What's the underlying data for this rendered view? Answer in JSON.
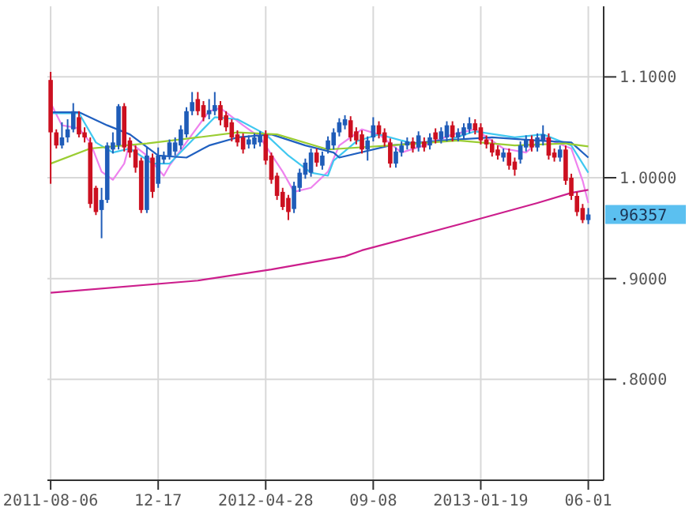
{
  "chart_data": {
    "type": "candlestick",
    "xlim": [
      "2011-08-02",
      "2013-06-20"
    ],
    "ylim": [
      0.7,
      1.17
    ],
    "xticks": [
      {
        "value": "2011-08-06",
        "label": "2011-08-06"
      },
      {
        "value": "2011-12-17",
        "label": "12-17"
      },
      {
        "value": "2012-04-28",
        "label": "2012-04-28"
      },
      {
        "value": "2012-09-08",
        "label": "09-08"
      },
      {
        "value": "2013-01-19",
        "label": "2013-01-19"
      },
      {
        "value": "2013-06-01",
        "label": "06-01"
      }
    ],
    "yticks": [
      {
        "value": 0.8,
        "label": ".8000"
      },
      {
        "value": 0.9,
        "label": ".9000"
      },
      {
        "value": 1.0,
        "label": "1.0000"
      },
      {
        "value": 1.1,
        "label": "1.1000"
      }
    ],
    "grid": true,
    "annotations": [
      ".96357"
    ],
    "series": [
      {
        "colors": [
          "#cc1020",
          "#cc1020",
          "#1f5cb8",
          "#1f5cb8",
          "#1f5cb8",
          "#cc1020",
          "#cc1020",
          "#cc1020",
          "#cc1020",
          "#1f5cb8",
          "#1f5cb8",
          "#1f5cb8",
          "#1f5cb8",
          "#cc1020",
          "#cc1020",
          "#cc1020",
          "#cc1020",
          "#1f5cb8",
          "#cc1020",
          "#1f5cb8",
          "#1f5cb8",
          "#1f5cb8",
          "#1f5cb8",
          "#1f5cb8",
          "#1f5cb8",
          "#1f5cb8",
          "#cc1020",
          "#cc1020",
          "#1f5cb8",
          "#1f5cb8",
          "#cc1020",
          "#cc1020",
          "#cc1020",
          "#cc1020",
          "#cc1020",
          "#1f5cb8",
          "#1f5cb8",
          "#1f5cb8",
          "#cc1020",
          "#cc1020",
          "#cc1020",
          "#cc1020",
          "#cc1020",
          "#1f5cb8",
          "#1f5cb8",
          "#1f5cb8",
          "#1f5cb8",
          "#cc1020",
          "#1f5cb8",
          "#1f5cb8",
          "#1f5cb8",
          "#1f5cb8",
          "#1f5cb8",
          "#cc1020",
          "#cc1020",
          "#cc1020",
          "#1f5cb8",
          "#1f5cb8",
          "#cc1020",
          "#cc1020",
          "#cc1020",
          "#1f5cb8",
          "#1f5cb8",
          "#1f5cb8",
          "#cc1020",
          "#1f5cb8",
          "#cc1020",
          "#1f5cb8",
          "#cc1020",
          "#1f5cb8",
          "#1f5cb8",
          "#cc1020",
          "#1f5cb8",
          "#1f5cb8",
          "#1f5cb8",
          "#cc1020",
          "#cc1020",
          "#cc1020",
          "#cc1020",
          "#cc1020",
          "#1f5cb8",
          "#cc1020",
          "#cc1020",
          "#1f5cb8",
          "#1f5cb8",
          "#cc1020",
          "#1f5cb8",
          "#1f5cb8",
          "#cc1020",
          "#cc1020",
          "#1f5cb8",
          "#cc1020",
          "#cc1020",
          "#cc1020",
          "#cc1020",
          "#1f5cb8"
        ],
        "x": [
          "2011-08-06",
          "2011-08-13",
          "2011-08-20",
          "2011-08-27",
          "2011-09-03",
          "2011-09-10",
          "2011-09-17",
          "2011-09-24",
          "2011-10-01",
          "2011-10-08",
          "2011-10-15",
          "2011-10-22",
          "2011-10-29",
          "2011-11-05",
          "2011-11-12",
          "2011-11-19",
          "2011-11-26",
          "2011-12-03",
          "2011-12-10",
          "2011-12-17",
          "2011-12-24",
          "2011-12-31",
          "2012-01-07",
          "2012-01-14",
          "2012-01-21",
          "2012-01-28",
          "2012-02-04",
          "2012-02-11",
          "2012-02-18",
          "2012-02-25",
          "2012-03-03",
          "2012-03-10",
          "2012-03-17",
          "2012-03-24",
          "2012-03-31",
          "2012-04-07",
          "2012-04-14",
          "2012-04-21",
          "2012-04-28",
          "2012-05-05",
          "2012-05-12",
          "2012-05-19",
          "2012-05-26",
          "2012-06-02",
          "2012-06-09",
          "2012-06-16",
          "2012-06-23",
          "2012-06-30",
          "2012-07-07",
          "2012-07-14",
          "2012-07-21",
          "2012-07-28",
          "2012-08-04",
          "2012-08-11",
          "2012-08-18",
          "2012-08-25",
          "2012-09-01",
          "2012-09-08",
          "2012-09-15",
          "2012-09-22",
          "2012-09-29",
          "2012-10-06",
          "2012-10-13",
          "2012-10-20",
          "2012-10-27",
          "2012-11-03",
          "2012-11-10",
          "2012-11-17",
          "2012-11-24",
          "2012-12-01",
          "2012-12-08",
          "2012-12-15",
          "2012-12-22",
          "2012-12-29",
          "2013-01-05",
          "2013-01-12",
          "2013-01-19",
          "2013-01-26",
          "2013-02-02",
          "2013-02-09",
          "2013-02-16",
          "2013-02-23",
          "2013-03-02",
          "2013-03-09",
          "2013-03-16",
          "2013-03-23",
          "2013-03-30",
          "2013-04-06",
          "2013-04-13",
          "2013-04-20",
          "2013-04-27",
          "2013-05-04",
          "2013-05-11",
          "2013-05-18",
          "2013-05-25",
          "2013-06-01"
        ],
        "ohlc": [
          [
            1.097,
            1.105,
            0.994,
            1.045
          ],
          [
            1.045,
            1.048,
            1.029,
            1.032
          ],
          [
            1.032,
            1.055,
            1.029,
            1.04
          ],
          [
            1.04,
            1.058,
            1.035,
            1.048
          ],
          [
            1.048,
            1.074,
            1.045,
            1.066
          ],
          [
            1.06,
            1.066,
            1.04,
            1.043
          ],
          [
            1.045,
            1.05,
            1.035,
            1.04
          ],
          [
            1.035,
            1.04,
            0.97,
            0.974
          ],
          [
            0.99,
            0.992,
            0.963,
            0.966
          ],
          [
            0.968,
            0.99,
            0.94,
            0.978
          ],
          [
            0.978,
            1.035,
            0.975,
            1.032
          ],
          [
            1.028,
            1.045,
            1.024,
            1.035
          ],
          [
            1.032,
            1.073,
            1.028,
            1.071
          ],
          [
            1.071,
            1.074,
            1.026,
            1.03
          ],
          [
            1.037,
            1.04,
            1.02,
            1.025
          ],
          [
            1.028,
            1.032,
            1.005,
            1.01
          ],
          [
            1.017,
            1.02,
            0.965,
            0.968
          ],
          [
            0.968,
            1.03,
            0.965,
            1.022
          ],
          [
            1.02,
            1.024,
            0.98,
            0.986
          ],
          [
            0.994,
            1.03,
            0.99,
            1.022
          ],
          [
            1.018,
            1.026,
            1.014,
            1.022
          ],
          [
            1.022,
            1.038,
            1.018,
            1.035
          ],
          [
            1.026,
            1.04,
            1.022,
            1.035
          ],
          [
            1.032,
            1.052,
            1.028,
            1.048
          ],
          [
            1.043,
            1.07,
            1.04,
            1.066
          ],
          [
            1.066,
            1.085,
            1.062,
            1.075
          ],
          [
            1.078,
            1.085,
            1.062,
            1.066
          ],
          [
            1.072,
            1.076,
            1.056,
            1.06
          ],
          [
            1.063,
            1.078,
            1.058,
            1.067
          ],
          [
            1.066,
            1.085,
            1.062,
            1.072
          ],
          [
            1.072,
            1.076,
            1.052,
            1.057
          ],
          [
            1.062,
            1.066,
            1.046,
            1.05
          ],
          [
            1.055,
            1.058,
            1.036,
            1.04
          ],
          [
            1.043,
            1.047,
            1.031,
            1.035
          ],
          [
            1.04,
            1.044,
            1.024,
            1.028
          ],
          [
            1.033,
            1.042,
            1.029,
            1.038
          ],
          [
            1.033,
            1.044,
            1.029,
            1.04
          ],
          [
            1.035,
            1.046,
            1.031,
            1.042
          ],
          [
            1.043,
            1.047,
            1.013,
            1.017
          ],
          [
            1.022,
            1.025,
            0.994,
            0.998
          ],
          [
            1.002,
            1.005,
            0.978,
            0.982
          ],
          [
            0.986,
            0.99,
            0.968,
            0.971
          ],
          [
            0.98,
            0.983,
            0.958,
            0.966
          ],
          [
            0.969,
            0.996,
            0.965,
            0.992
          ],
          [
            0.99,
            1.009,
            0.986,
            1.005
          ],
          [
            1.003,
            1.019,
            0.999,
            1.015
          ],
          [
            1.005,
            1.029,
            1.001,
            1.025
          ],
          [
            1.025,
            1.029,
            1.011,
            1.015
          ],
          [
            1.012,
            1.026,
            1.008,
            1.022
          ],
          [
            1.028,
            1.041,
            1.024,
            1.037
          ],
          [
            1.032,
            1.049,
            1.028,
            1.045
          ],
          [
            1.045,
            1.059,
            1.041,
            1.055
          ],
          [
            1.052,
            1.062,
            1.048,
            1.058
          ],
          [
            1.057,
            1.061,
            1.036,
            1.04
          ],
          [
            1.046,
            1.05,
            1.033,
            1.037
          ],
          [
            1.043,
            1.047,
            1.024,
            1.028
          ],
          [
            1.028,
            1.041,
            1.017,
            1.037
          ],
          [
            1.04,
            1.06,
            1.036,
            1.052
          ],
          [
            1.052,
            1.056,
            1.039,
            1.043
          ],
          [
            1.045,
            1.049,
            1.031,
            1.035
          ],
          [
            1.035,
            1.039,
            1.01,
            1.014
          ],
          [
            1.014,
            1.03,
            1.01,
            1.026
          ],
          [
            1.025,
            1.036,
            1.021,
            1.032
          ],
          [
            1.032,
            1.04,
            1.028,
            1.036
          ],
          [
            1.036,
            1.04,
            1.025,
            1.029
          ],
          [
            1.03,
            1.046,
            1.026,
            1.042
          ],
          [
            1.036,
            1.04,
            1.026,
            1.03
          ],
          [
            1.032,
            1.044,
            1.028,
            1.04
          ],
          [
            1.045,
            1.049,
            1.034,
            1.038
          ],
          [
            1.038,
            1.05,
            1.034,
            1.046
          ],
          [
            1.04,
            1.056,
            1.036,
            1.052
          ],
          [
            1.052,
            1.056,
            1.036,
            1.04
          ],
          [
            1.04,
            1.049,
            1.036,
            1.045
          ],
          [
            1.042,
            1.054,
            1.038,
            1.05
          ],
          [
            1.048,
            1.06,
            1.044,
            1.054
          ],
          [
            1.054,
            1.058,
            1.043,
            1.047
          ],
          [
            1.05,
            1.054,
            1.033,
            1.037
          ],
          [
            1.038,
            1.042,
            1.029,
            1.033
          ],
          [
            1.034,
            1.038,
            1.021,
            1.025
          ],
          [
            1.028,
            1.032,
            1.018,
            1.022
          ],
          [
            1.02,
            1.029,
            1.016,
            1.025
          ],
          [
            1.025,
            1.029,
            1.008,
            1.012
          ],
          [
            1.016,
            1.02,
            1.002,
            1.008
          ],
          [
            1.018,
            1.036,
            1.014,
            1.032
          ],
          [
            1.03,
            1.042,
            1.026,
            1.038
          ],
          [
            1.038,
            1.042,
            1.026,
            1.03
          ],
          [
            1.03,
            1.044,
            1.026,
            1.04
          ],
          [
            1.036,
            1.052,
            1.032,
            1.043
          ],
          [
            1.04,
            1.044,
            1.018,
            1.022
          ],
          [
            1.025,
            1.029,
            1.016,
            1.02
          ],
          [
            1.02,
            1.032,
            1.016,
            1.028
          ],
          [
            1.028,
            1.032,
            0.993,
            0.997
          ],
          [
            1.0,
            1.004,
            0.978,
            0.982
          ],
          [
            0.982,
            0.986,
            0.962,
            0.966
          ],
          [
            0.97,
            0.974,
            0.955,
            0.958
          ],
          [
            0.958,
            0.97,
            0.954,
            0.96357
          ]
        ]
      },
      {
        "type": "line",
        "color": "#ee82ee",
        "x": [
          "2011-08-06",
          "2011-08-20",
          "2011-09-10",
          "2011-09-24",
          "2011-10-08",
          "2011-10-22",
          "2011-11-05",
          "2011-11-12",
          "2011-12-03",
          "2011-12-24",
          "2011-12-31",
          "2012-01-28",
          "2012-02-18",
          "2012-03-03",
          "2012-03-31",
          "2012-04-21",
          "2012-05-19",
          "2012-06-02",
          "2012-06-23",
          "2012-07-14",
          "2012-07-28",
          "2012-08-25",
          "2012-09-15",
          "2012-10-13",
          "2012-11-10",
          "2012-12-15",
          "2013-01-12",
          "2013-02-16",
          "2013-03-16",
          "2013-04-06",
          "2013-05-11",
          "2013-05-25",
          "2013-06-01"
        ],
        "values": [
          1.074,
          1.052,
          1.049,
          1.035,
          1.006,
          0.998,
          1.014,
          1.035,
          1.022,
          1.002,
          1.012,
          1.043,
          1.066,
          1.069,
          1.052,
          1.04,
          1.006,
          0.986,
          0.99,
          1.006,
          1.032,
          1.048,
          1.043,
          1.025,
          1.032,
          1.043,
          1.048,
          1.029,
          1.025,
          1.04,
          1.029,
          0.997,
          0.975
        ]
      },
      {
        "type": "line",
        "color": "#40c8f0",
        "x": [
          "2011-08-06",
          "2011-09-10",
          "2011-10-01",
          "2011-10-22",
          "2011-11-12",
          "2011-12-10",
          "2011-12-31",
          "2012-01-28",
          "2012-02-25",
          "2012-03-24",
          "2012-04-28",
          "2012-05-26",
          "2012-06-23",
          "2012-07-14",
          "2012-07-21",
          "2012-08-18",
          "2012-09-15",
          "2012-10-27",
          "2012-12-08",
          "2013-01-12",
          "2013-03-02",
          "2013-04-06",
          "2013-05-11",
          "2013-06-01"
        ],
        "values": [
          1.064,
          1.064,
          1.035,
          1.025,
          1.029,
          1.014,
          1.014,
          1.037,
          1.06,
          1.058,
          1.043,
          1.022,
          1.005,
          1.002,
          1.017,
          1.036,
          1.043,
          1.034,
          1.037,
          1.046,
          1.04,
          1.043,
          1.032,
          1.005
        ]
      },
      {
        "type": "line",
        "color": "#2060c0",
        "x": [
          "2011-08-06",
          "2011-09-10",
          "2011-10-15",
          "2011-11-12",
          "2011-12-17",
          "2012-01-21",
          "2012-02-18",
          "2012-03-24",
          "2012-05-05",
          "2012-06-16",
          "2012-07-21",
          "2012-07-28",
          "2012-09-29",
          "2012-12-01",
          "2013-02-02",
          "2013-03-30",
          "2013-05-11",
          "2013-06-01"
        ],
        "values": [
          1.065,
          1.065,
          1.052,
          1.043,
          1.022,
          1.02,
          1.032,
          1.04,
          1.043,
          1.032,
          1.025,
          1.02,
          1.032,
          1.037,
          1.04,
          1.037,
          1.035,
          1.02
        ]
      },
      {
        "type": "line",
        "color": "#9acd32",
        "x": [
          "2011-08-06",
          "2011-09-24",
          "2011-12-03",
          "2012-02-04",
          "2012-03-24",
          "2012-05-12",
          "2012-07-14",
          "2012-09-29",
          "2012-12-22",
          "2013-03-02",
          "2013-05-04",
          "2013-06-01"
        ],
        "values": [
          1.014,
          1.029,
          1.034,
          1.04,
          1.045,
          1.043,
          1.028,
          1.032,
          1.037,
          1.032,
          1.034,
          1.031
        ]
      },
      {
        "type": "line",
        "color": "#cc1e8c",
        "x": [
          "2011-08-06",
          "2012-02-04",
          "2012-05-05",
          "2012-08-04",
          "2012-08-25",
          "2012-12-29",
          "2013-03-30",
          "2013-05-11",
          "2013-06-01"
        ],
        "values": [
          0.886,
          0.898,
          0.909,
          0.922,
          0.928,
          0.955,
          0.975,
          0.985,
          0.988
        ]
      }
    ]
  }
}
